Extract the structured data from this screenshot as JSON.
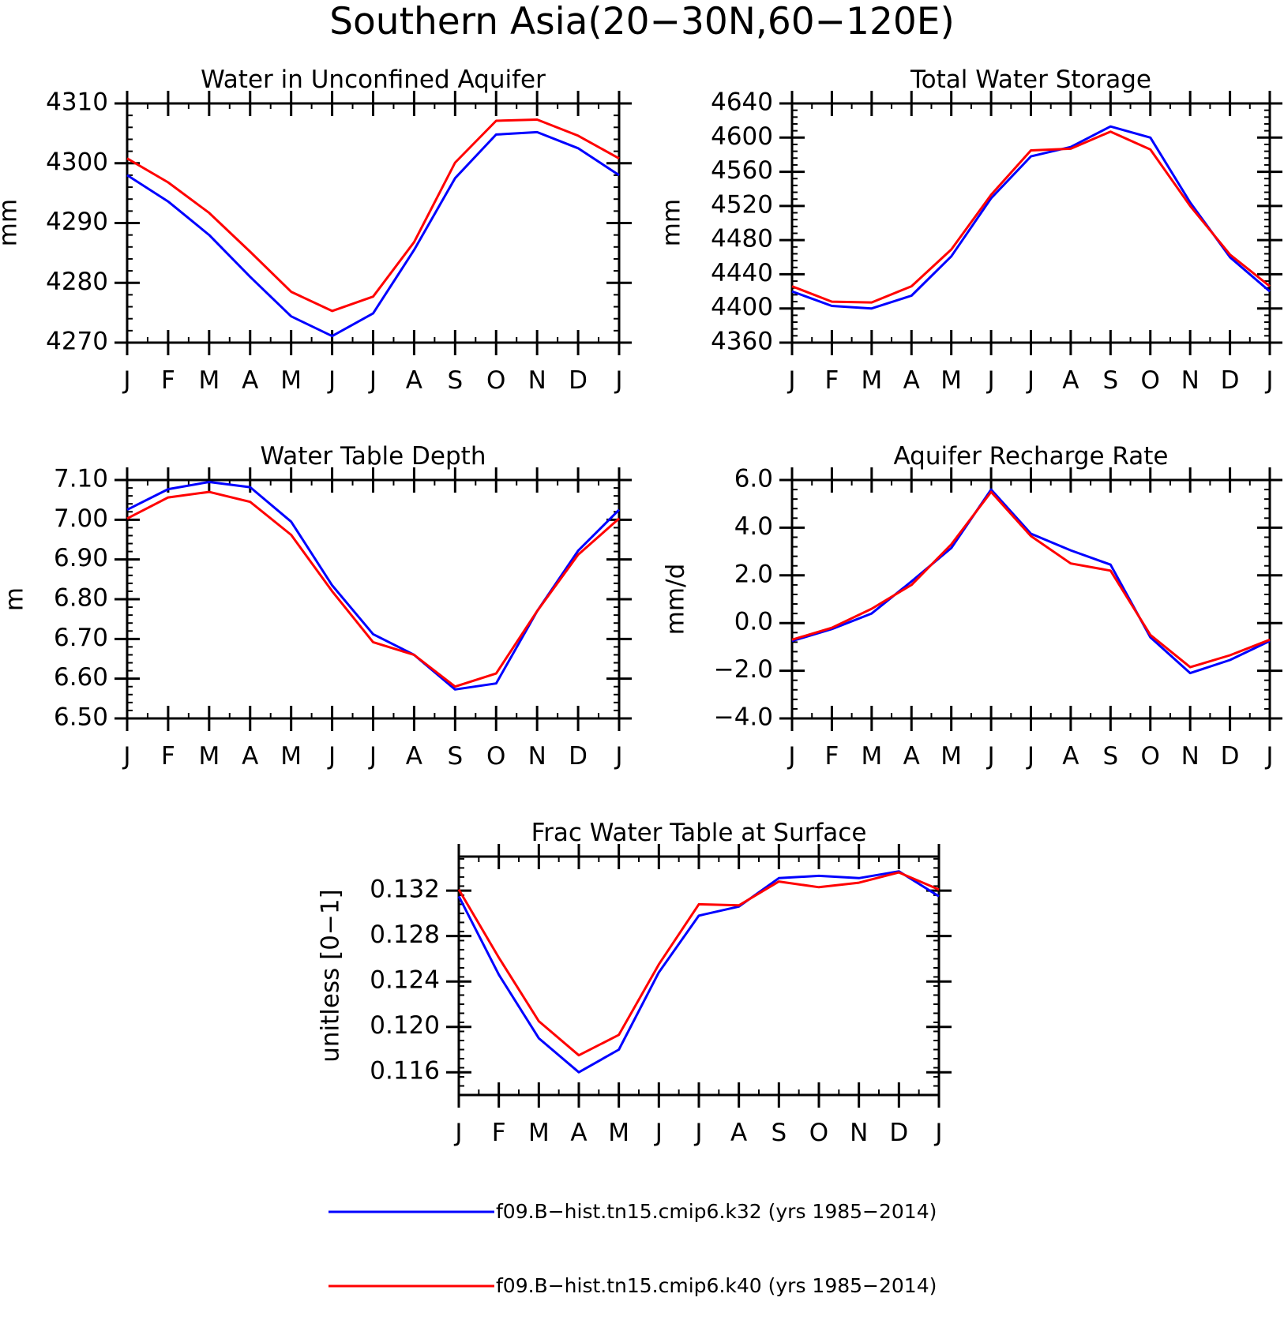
{
  "figure_title": "Southern Asia(20−30N,60−120E)",
  "month_ticks": [
    "J",
    "F",
    "M",
    "A",
    "M",
    "J",
    "J",
    "A",
    "S",
    "O",
    "N",
    "D",
    "J"
  ],
  "colors": {
    "k32": "#0000ff",
    "k40": "#ff0000"
  },
  "legend": [
    {
      "label": "f09.B−hist.tn15.cmip6.k32 (yrs 1985−2014)",
      "color": "#0000ff"
    },
    {
      "label": "f09.B−hist.tn15.cmip6.k40 (yrs 1985−2014)",
      "color": "#ff0000"
    }
  ],
  "chart_data": [
    {
      "type": "line",
      "title": "Water in Unconfined Aquifer",
      "ylabel": "mm",
      "ylim": [
        4270,
        4310
      ],
      "yticks": [
        "4270",
        "4280",
        "4290",
        "4300",
        "4310"
      ],
      "x": [
        "J",
        "F",
        "M",
        "A",
        "M",
        "J",
        "J",
        "A",
        "S",
        "O",
        "N",
        "D",
        "J"
      ],
      "series": [
        {
          "name": "f09.B−hist.tn15.cmip6.k32 (yrs 1985−2014)",
          "color": "#0000ff",
          "values": [
            4298.0,
            4293.6,
            4288.0,
            4281.0,
            4274.4,
            4271.1,
            4274.9,
            4285.5,
            4297.5,
            4304.8,
            4305.2,
            4302.5,
            4298.0
          ]
        },
        {
          "name": "f09.B−hist.tn15.cmip6.k40 (yrs 1985−2014)",
          "color": "#ff0000",
          "values": [
            4300.8,
            4296.8,
            4291.7,
            4285.2,
            4278.5,
            4275.3,
            4277.7,
            4286.8,
            4300.1,
            4307.1,
            4307.3,
            4304.6,
            4300.8
          ]
        }
      ]
    },
    {
      "type": "line",
      "title": "Total Water Storage",
      "ylabel": "mm",
      "ylim": [
        4360,
        4640
      ],
      "yticks": [
        "4360",
        "4400",
        "4440",
        "4480",
        "4520",
        "4560",
        "4600",
        "4640"
      ],
      "x": [
        "J",
        "F",
        "M",
        "A",
        "M",
        "J",
        "J",
        "A",
        "S",
        "O",
        "N",
        "D",
        "J"
      ],
      "series": [
        {
          "name": "f09.B−hist.tn15.cmip6.k32 (yrs 1985−2014)",
          "color": "#0000ff",
          "values": [
            4420,
            4403,
            4400,
            4415,
            4461,
            4529,
            4578,
            4589,
            4613,
            4600,
            4524,
            4460,
            4420
          ]
        },
        {
          "name": "f09.B−hist.tn15.cmip6.k40 (yrs 1985−2014)",
          "color": "#ff0000",
          "values": [
            4426,
            4408,
            4407,
            4426,
            4469,
            4533,
            4585,
            4587,
            4607,
            4586,
            4520,
            4463,
            4426
          ]
        }
      ]
    },
    {
      "type": "line",
      "title": "Water Table Depth",
      "ylabel": "m",
      "ylim": [
        6.5,
        7.1
      ],
      "yticks": [
        "6.50",
        "6.60",
        "6.70",
        "6.80",
        "6.90",
        "7.00",
        "7.10"
      ],
      "x": [
        "J",
        "F",
        "M",
        "A",
        "M",
        "J",
        "J",
        "A",
        "S",
        "O",
        "N",
        "D",
        "J"
      ],
      "series": [
        {
          "name": "f09.B−hist.tn15.cmip6.k32 (yrs 1985−2014)",
          "color": "#0000ff",
          "values": [
            7.025,
            7.077,
            7.095,
            7.082,
            6.995,
            6.835,
            6.712,
            6.66,
            6.573,
            6.588,
            6.77,
            6.922,
            7.025
          ]
        },
        {
          "name": "f09.B−hist.tn15.cmip6.k40 (yrs 1985−2014)",
          "color": "#ff0000",
          "values": [
            7.003,
            7.056,
            7.07,
            7.045,
            6.962,
            6.82,
            6.692,
            6.66,
            6.58,
            6.613,
            6.77,
            6.912,
            7.003
          ]
        }
      ]
    },
    {
      "type": "line",
      "title": "Aquifer Recharge Rate",
      "ylabel": "mm/d",
      "ylim": [
        -4.0,
        6.0
      ],
      "yticks": [
        "−4.0",
        "−2.0",
        "0.0",
        "2.0",
        "4.0",
        "6.0"
      ],
      "x": [
        "J",
        "F",
        "M",
        "A",
        "M",
        "J",
        "J",
        "A",
        "S",
        "O",
        "N",
        "D",
        "J"
      ],
      "series": [
        {
          "name": "f09.B−hist.tn15.cmip6.k32 (yrs 1985−2014)",
          "color": "#0000ff",
          "values": [
            -0.75,
            -0.25,
            0.4,
            1.75,
            3.15,
            5.6,
            3.75,
            3.05,
            2.45,
            -0.6,
            -2.1,
            -1.55,
            -0.75
          ]
        },
        {
          "name": "f09.B−hist.tn15.cmip6.k40 (yrs 1985−2014)",
          "color": "#ff0000",
          "values": [
            -0.7,
            -0.2,
            0.6,
            1.6,
            3.3,
            5.5,
            3.65,
            2.5,
            2.2,
            -0.5,
            -1.85,
            -1.35,
            -0.7
          ]
        }
      ]
    },
    {
      "type": "line",
      "title": "Frac Water Table at Surface",
      "ylabel": "unitless [0−1]",
      "ylim": [
        0.114,
        0.135
      ],
      "yticks": [
        "0.116",
        "0.120",
        "0.124",
        "0.128",
        "0.132"
      ],
      "x": [
        "J",
        "F",
        "M",
        "A",
        "M",
        "J",
        "J",
        "A",
        "S",
        "O",
        "N",
        "D",
        "J"
      ],
      "series": [
        {
          "name": "f09.B−hist.tn15.cmip6.k32 (yrs 1985−2014)",
          "color": "#0000ff",
          "values": [
            0.1315,
            0.1246,
            0.119,
            0.116,
            0.118,
            0.1248,
            0.1298,
            0.1306,
            0.1331,
            0.1333,
            0.1331,
            0.1337,
            0.1315
          ]
        },
        {
          "name": "f09.B−hist.tn15.cmip6.k40 (yrs 1985−2014)",
          "color": "#ff0000",
          "values": [
            0.1321,
            0.1261,
            0.1205,
            0.1175,
            0.1193,
            0.1255,
            0.1308,
            0.1307,
            0.1328,
            0.1323,
            0.1327,
            0.1336,
            0.1321
          ]
        }
      ]
    }
  ]
}
